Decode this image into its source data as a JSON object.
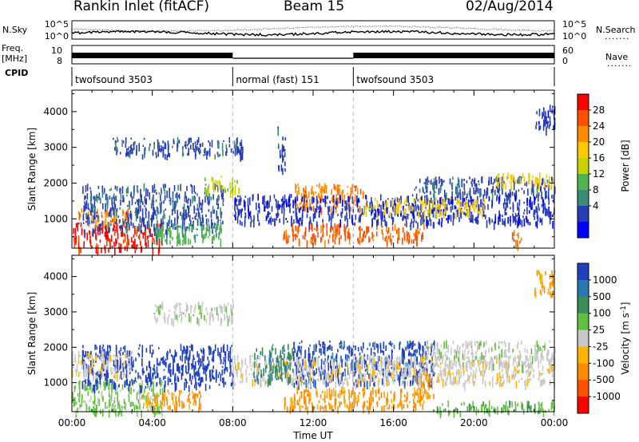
{
  "header": {
    "station": "Rankin Inlet (fitACF)",
    "beam": "Beam 15",
    "date": "02/Aug/2014"
  },
  "side_labels": {
    "n_sky": "N.Sky",
    "n_search": "N.Search",
    "freq": "Freq.",
    "freq_unit": "[MHz]",
    "nave": "Nave",
    "cpid": "CPID",
    "dots": "......."
  },
  "noise_panel": {
    "ticks_left": [
      "10^5",
      "10^0"
    ],
    "ticks_right": [
      "10^5",
      "10^0"
    ]
  },
  "freq_panel": {
    "ticks_left": [
      "10",
      "8"
    ],
    "ticks_right": [
      "60",
      "0"
    ]
  },
  "cpid_panel": {
    "segments": [
      {
        "label": "twofsound 3503",
        "start_h": 0,
        "end_h": 8
      },
      {
        "label": "normal (fast) 151",
        "start_h": 8,
        "end_h": 14
      },
      {
        "label": "twofsound 3503",
        "start_h": 14,
        "end_h": 24
      }
    ]
  },
  "chart_data": [
    {
      "type": "heatmap",
      "name": "power",
      "ylabel": "Slant Range [km]",
      "x_range_h": [
        0,
        24
      ],
      "ylim": [
        180,
        4600
      ],
      "y_ticks": [
        "1000",
        "2000",
        "3000",
        "4000"
      ],
      "colorbar": {
        "label": "Power [dB]",
        "ticks": [
          "28",
          "24",
          "20",
          "16",
          "12",
          "8",
          "4"
        ],
        "colors": [
          "#ff0000",
          "#ff5000",
          "#ff8c00",
          "#ffc800",
          "#c8d200",
          "#50b450",
          "#3c8c78",
          "#283cb4",
          "#0000ff"
        ]
      },
      "patches": [
        {
          "x0": 0.0,
          "x1": 4.5,
          "y0": 180,
          "y1": 900,
          "c": 0
        },
        {
          "x0": 0.2,
          "x1": 3.0,
          "y0": 900,
          "y1": 1300,
          "c": 2
        },
        {
          "x0": 0.5,
          "x1": 7.5,
          "y0": 700,
          "y1": 2000,
          "c": 7
        },
        {
          "x0": 4.0,
          "x1": 7.5,
          "y0": 400,
          "y1": 900,
          "c": 5
        },
        {
          "x0": 2.0,
          "x1": 8.5,
          "y0": 2800,
          "y1": 3300,
          "c": 7
        },
        {
          "x0": 6.5,
          "x1": 8.3,
          "y0": 1800,
          "y1": 2200,
          "c": 4
        },
        {
          "x0": 10.5,
          "x1": 17.5,
          "y0": 400,
          "y1": 900,
          "c": 1
        },
        {
          "x0": 11.0,
          "x1": 14.5,
          "y0": 1300,
          "y1": 2000,
          "c": 2
        },
        {
          "x0": 8.0,
          "x1": 24.0,
          "y0": 900,
          "y1": 1700,
          "c": 7
        },
        {
          "x0": 14.5,
          "x1": 20.5,
          "y0": 1200,
          "y1": 1600,
          "c": 3
        },
        {
          "x0": 17.0,
          "x1": 24.0,
          "y0": 1700,
          "y1": 2200,
          "c": 7
        },
        {
          "x0": 21.0,
          "x1": 24.0,
          "y0": 2000,
          "y1": 2300,
          "c": 3
        },
        {
          "x0": 23.0,
          "x1": 24.0,
          "y0": 3500,
          "y1": 4200,
          "c": 7
        },
        {
          "x0": 21.8,
          "x1": 22.4,
          "y0": 300,
          "y1": 700,
          "c": 1
        },
        {
          "x0": 10.2,
          "x1": 10.6,
          "y0": 2400,
          "y1": 3600,
          "c": 7
        }
      ]
    },
    {
      "type": "heatmap",
      "name": "velocity",
      "ylabel": "Slant Range [km]",
      "xlabel": "Time UT",
      "x_range_h": [
        0,
        24
      ],
      "x_ticks": [
        "00:00",
        "04:00",
        "08:00",
        "12:00",
        "16:00",
        "20:00",
        "00:00"
      ],
      "ylim": [
        180,
        4600
      ],
      "y_ticks": [
        "1000",
        "2000",
        "3000",
        "4000"
      ],
      "colorbar": {
        "label": "Velocity [m s^-1]",
        "ticks": [
          "1000",
          "500",
          "100",
          "25",
          "-25",
          "-100",
          "-500",
          "-1000"
        ],
        "colors": [
          "#2040c0",
          "#2878b4",
          "#3c8c5a",
          "#60c040",
          "#c8c8c8",
          "#ffb400",
          "#ff8c00",
          "#ff5000",
          "#ff0000"
        ]
      },
      "patches": [
        {
          "x0": 0.0,
          "x1": 4.5,
          "y0": 180,
          "y1": 1100,
          "c": 3
        },
        {
          "x0": 0.5,
          "x1": 8.0,
          "y0": 900,
          "y1": 2100,
          "c": 0
        },
        {
          "x0": 0.0,
          "x1": 3.0,
          "y0": 1200,
          "y1": 1900,
          "c": 4
        },
        {
          "x0": 4.0,
          "x1": 8.0,
          "y0": 2800,
          "y1": 3300,
          "c": 4
        },
        {
          "x0": 3.5,
          "x1": 6.5,
          "y0": 300,
          "y1": 800,
          "c": 6
        },
        {
          "x0": 10.5,
          "x1": 17.5,
          "y0": 300,
          "y1": 900,
          "c": 6
        },
        {
          "x0": 11.0,
          "x1": 18.0,
          "y0": 1000,
          "y1": 2200,
          "c": 0
        },
        {
          "x0": 8.0,
          "x1": 24.0,
          "y0": 1000,
          "y1": 1800,
          "c": 4
        },
        {
          "x0": 17.5,
          "x1": 24.0,
          "y0": 1500,
          "y1": 2200,
          "c": 4
        },
        {
          "x0": 17.0,
          "x1": 18.0,
          "y0": 600,
          "y1": 1300,
          "c": 6
        },
        {
          "x0": 23.0,
          "x1": 24.0,
          "y0": 3500,
          "y1": 4200,
          "c": 6
        },
        {
          "x0": 9.0,
          "x1": 11.0,
          "y0": 1100,
          "y1": 2100,
          "c": 2
        },
        {
          "x0": 18.0,
          "x1": 24.0,
          "y0": 200,
          "y1": 500,
          "c": 3
        }
      ]
    }
  ]
}
